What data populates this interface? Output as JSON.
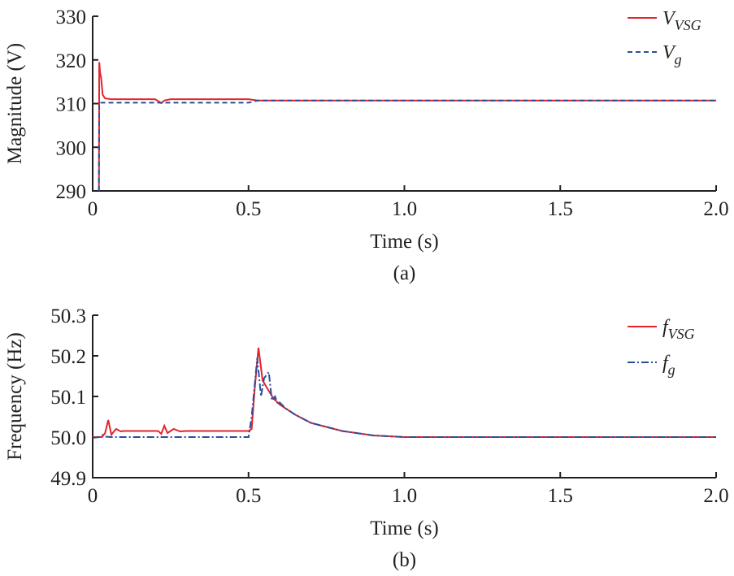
{
  "chart_data": [
    {
      "type": "line",
      "caption": "(a)",
      "xlabel": "Time (s)",
      "ylabel": "Magnitude (V)",
      "xlim": [
        0,
        2.0
      ],
      "ylim": [
        290,
        330
      ],
      "xticks": [
        "0",
        "0.5",
        "1.0",
        "1.5",
        "2.0"
      ],
      "xtick_values": [
        0,
        0.5,
        1.0,
        1.5,
        2.0
      ],
      "yticks": [
        "290",
        "300",
        "310",
        "320",
        "330"
      ],
      "ytick_values": [
        290,
        300,
        310,
        320,
        330
      ],
      "legend_position": "top-right",
      "series": [
        {
          "name": "V",
          "sub": "VSG",
          "color": "#e3242b",
          "dash": "solid",
          "x": [
            0.02,
            0.021,
            0.024,
            0.027,
            0.032,
            0.04,
            0.06,
            0.2,
            0.21,
            0.22,
            0.23,
            0.25,
            0.5,
            0.53,
            2.0
          ],
          "y": [
            290,
            319.5,
            317,
            316,
            312,
            311.2,
            311,
            311,
            310.6,
            310.1,
            310.7,
            311,
            311,
            310.7,
            310.7
          ]
        },
        {
          "name": "V",
          "sub": "g",
          "color": "#2a4f9a",
          "dash": "dashed",
          "x": [
            0.02,
            0.021,
            0.5,
            0.53,
            2.0
          ],
          "y": [
            290,
            310.2,
            310.2,
            310.7,
            310.7
          ]
        }
      ]
    },
    {
      "type": "line",
      "caption": "(b)",
      "xlabel": "Time (s)",
      "ylabel": "Frequency (Hz)",
      "xlim": [
        0,
        2.0
      ],
      "ylim": [
        49.9,
        50.3
      ],
      "xticks": [
        "0",
        "0.5",
        "1.0",
        "1.5",
        "2.0"
      ],
      "xtick_values": [
        0,
        0.5,
        1.0,
        1.5,
        2.0
      ],
      "yticks": [
        "49.9",
        "50.0",
        "50.1",
        "50.2",
        "50.3"
      ],
      "ytick_values": [
        49.9,
        50.0,
        50.1,
        50.2,
        50.3
      ],
      "legend_position": "top-right",
      "series": [
        {
          "name": "f",
          "sub": "VSG",
          "color": "#e3242b",
          "dash": "solid",
          "x": [
            0,
            0.03,
            0.04,
            0.05,
            0.06,
            0.075,
            0.09,
            0.1,
            0.21,
            0.22,
            0.23,
            0.24,
            0.26,
            0.28,
            0.3,
            0.5,
            0.51,
            0.52,
            0.532,
            0.545,
            0.56,
            0.58,
            0.6,
            0.65,
            0.7,
            0.8,
            0.9,
            1.0,
            2.0
          ],
          "y": [
            50.0,
            50.0,
            50.01,
            50.042,
            50.006,
            50.02,
            50.014,
            50.015,
            50.015,
            50.008,
            50.028,
            50.01,
            50.02,
            50.014,
            50.015,
            50.015,
            50.02,
            50.12,
            50.22,
            50.14,
            50.12,
            50.095,
            50.08,
            50.055,
            50.035,
            50.015,
            50.004,
            50.0,
            50.0
          ]
        },
        {
          "name": "f",
          "sub": "g",
          "color": "#2a4f9a",
          "dash": "dashdot",
          "x": [
            0,
            0.02,
            0.03,
            0.04,
            0.06,
            0.5,
            0.51,
            0.528,
            0.54,
            0.55,
            0.565,
            0.575,
            0.585,
            0.595,
            0.6,
            0.62,
            0.65,
            0.7,
            0.8,
            0.9,
            1.0,
            2.0
          ],
          "y": [
            49.998,
            50.0,
            50.005,
            50.001,
            50.0,
            50.0,
            50.05,
            50.195,
            50.1,
            50.145,
            50.16,
            50.09,
            50.1,
            50.08,
            50.085,
            50.07,
            50.055,
            50.035,
            50.015,
            50.004,
            50.0,
            50.0
          ]
        }
      ]
    }
  ]
}
